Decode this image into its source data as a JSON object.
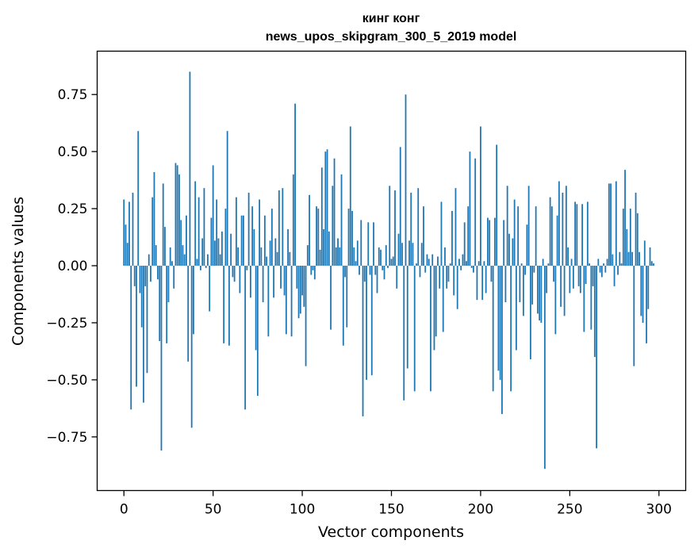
{
  "chart_data": {
    "type": "bar",
    "title": "кинг конг",
    "subtitle": "news_upos_skipgram_300_5_2019 model",
    "xlabel": "Vector components",
    "ylabel": "Components values",
    "xlim": [
      -15,
      315
    ],
    "ylim": [
      -0.985,
      0.94
    ],
    "xticks": [
      0,
      50,
      100,
      150,
      200,
      250,
      300
    ],
    "xtick_labels": [
      "0",
      "50",
      "100",
      "150",
      "200",
      "250",
      "300"
    ],
    "yticks": [
      0.75,
      0.5,
      0.25,
      0.0,
      -0.25,
      -0.5,
      -0.75
    ],
    "ytick_labels": [
      "0.75",
      "0.50",
      "0.25",
      "0.00",
      "−0.25",
      "−0.50",
      "−0.75"
    ],
    "bar_color": "#1f77b4",
    "grid": false,
    "values": [
      0.29,
      0.18,
      0.1,
      0.28,
      -0.63,
      0.32,
      -0.09,
      -0.53,
      0.59,
      -0.12,
      -0.27,
      -0.6,
      -0.09,
      -0.47,
      0.05,
      -0.07,
      0.3,
      0.41,
      0.09,
      -0.06,
      -0.33,
      -0.81,
      0.36,
      0.17,
      -0.34,
      -0.16,
      0.08,
      0.02,
      -0.1,
      0.45,
      0.44,
      0.4,
      0.2,
      0.09,
      0.05,
      0.22,
      -0.42,
      0.85,
      -0.71,
      -0.3,
      0.37,
      0.03,
      0.3,
      -0.02,
      0.12,
      0.34,
      -0.01,
      0.05,
      -0.2,
      0.21,
      0.44,
      0.11,
      0.29,
      0.12,
      0.05,
      0.15,
      -0.34,
      0.25,
      0.59,
      -0.35,
      0.14,
      -0.05,
      -0.07,
      0.3,
      0.08,
      -0.12,
      0.22,
      0.22,
      -0.63,
      -0.02,
      0.32,
      -0.14,
      0.26,
      0.16,
      -0.37,
      -0.57,
      0.29,
      0.08,
      -0.16,
      0.22,
      0.04,
      -0.31,
      0.11,
      0.25,
      -0.14,
      0.12,
      0.06,
      0.33,
      -0.1,
      0.34,
      -0.13,
      -0.3,
      0.16,
      0.06,
      -0.31,
      0.4,
      0.71,
      -0.1,
      -0.23,
      -0.21,
      -0.13,
      -0.18,
      -0.44,
      0.09,
      0.31,
      -0.04,
      -0.02,
      -0.06,
      0.26,
      0.25,
      0.07,
      0.43,
      0.16,
      0.5,
      0.51,
      0.15,
      -0.28,
      0.35,
      0.47,
      0.08,
      0.12,
      0.08,
      0.4,
      -0.35,
      -0.05,
      -0.27,
      0.25,
      0.61,
      0.24,
      0.08,
      0.02,
      0.11,
      -0.04,
      0.2,
      -0.66,
      -0.07,
      -0.5,
      0.19,
      -0.04,
      -0.48,
      0.19,
      -0.04,
      -0.12,
      0.08,
      0.07,
      -0.02,
      -0.06,
      0.09,
      -0.01,
      0.35,
      0.03,
      0.04,
      0.33,
      -0.1,
      0.14,
      0.52,
      0.1,
      -0.59,
      0.75,
      -0.45,
      0.11,
      0.32,
      0.1,
      -0.55,
      0.01,
      0.34,
      -0.05,
      0.1,
      0.26,
      -0.03,
      0.05,
      0.03,
      -0.55,
      0.05,
      -0.37,
      -0.31,
      0.04,
      -0.1,
      0.28,
      -0.29,
      0.08,
      -0.1,
      -0.07,
      0.01,
      0.24,
      -0.13,
      0.34,
      -0.19,
      0.03,
      -0.02,
      0.05,
      0.19,
      0.02,
      0.26,
      0.5,
      -0.01,
      -0.03,
      0.47,
      -0.15,
      0.02,
      0.61,
      -0.15,
      0.02,
      -0.12,
      0.21,
      0.2,
      -0.07,
      -0.55,
      0.21,
      0.53,
      -0.46,
      -0.5,
      -0.65,
      0.2,
      -0.16,
      0.35,
      0.14,
      -0.55,
      0.12,
      0.29,
      -0.37,
      0.26,
      -0.16,
      0.01,
      -0.22,
      -0.04,
      0.18,
      0.35,
      -0.41,
      -0.17,
      -0.03,
      0.26,
      -0.21,
      -0.24,
      -0.25,
      0.03,
      -0.89,
      -0.12,
      0.01,
      0.3,
      0.26,
      -0.07,
      -0.3,
      0.22,
      0.37,
      -0.18,
      0.32,
      -0.22,
      0.35,
      0.08,
      -0.12,
      0.03,
      -0.1,
      0.28,
      0.27,
      -0.09,
      -0.12,
      0.27,
      -0.29,
      -0.08,
      0.28,
      0.01,
      -0.28,
      -0.09,
      -0.4,
      -0.8,
      0.03,
      -0.03,
      -0.05,
      0.01,
      -0.03,
      0.03,
      0.36,
      0.36,
      0.05,
      -0.09,
      0.37,
      -0.04,
      0.06,
      0.01,
      0.25,
      0.42,
      0.16,
      0.06,
      0.25,
      0.06,
      -0.44,
      0.32,
      0.23,
      0.06,
      -0.22,
      -0.25,
      0.11,
      -0.34,
      -0.19,
      0.08,
      0.02,
      0.01
    ]
  }
}
